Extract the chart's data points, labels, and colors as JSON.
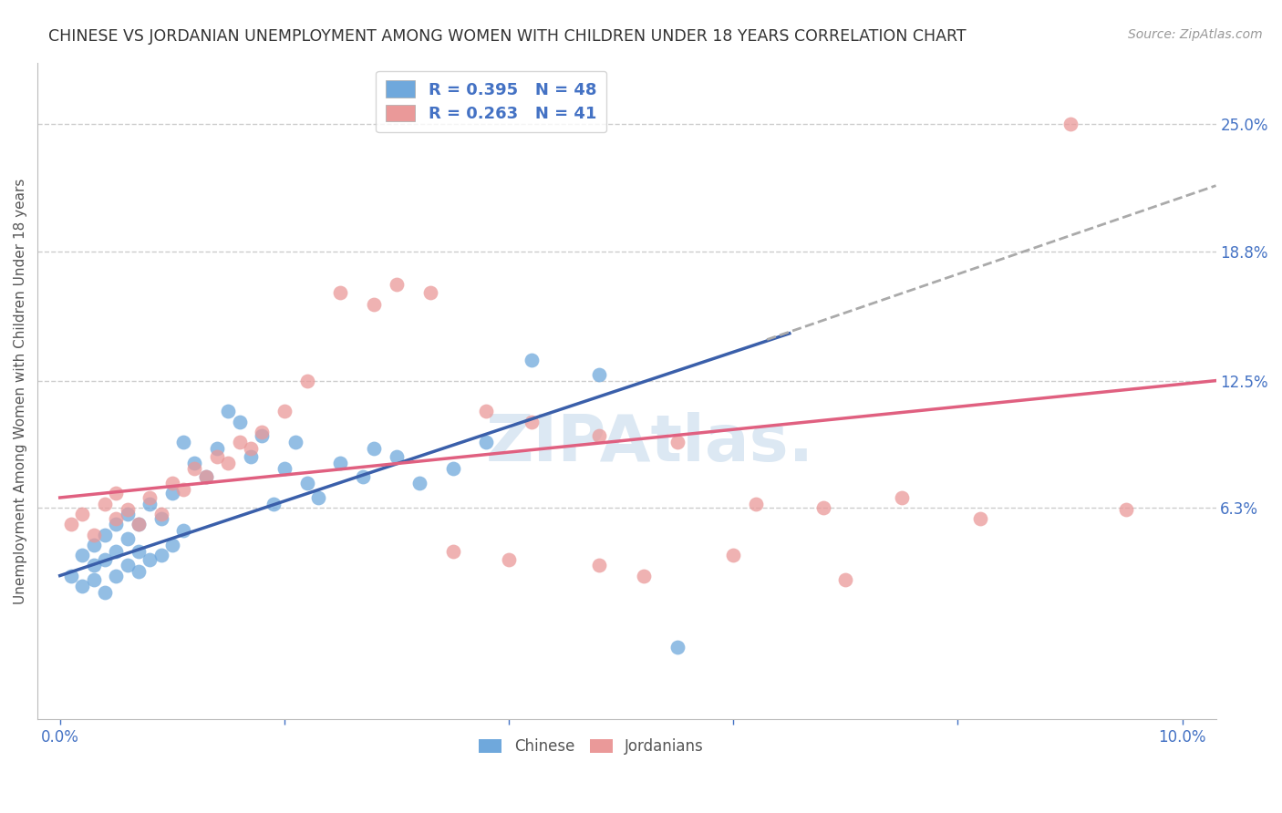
{
  "title": "CHINESE VS JORDANIAN UNEMPLOYMENT AMONG WOMEN WITH CHILDREN UNDER 18 YEARS CORRELATION CHART",
  "source": "Source: ZipAtlas.com",
  "ylabel": "Unemployment Among Women with Children Under 18 years",
  "xlim": [
    -0.002,
    0.103
  ],
  "ylim": [
    -0.04,
    0.28
  ],
  "ytick_right_vals": [
    0.063,
    0.125,
    0.188,
    0.25
  ],
  "ytick_right_labels": [
    "6.3%",
    "12.5%",
    "18.8%",
    "25.0%"
  ],
  "legend_r_chinese": "R = 0.395",
  "legend_n_chinese": "N = 48",
  "legend_r_jordanian": "R = 0.263",
  "legend_n_jordanian": "N = 41",
  "chinese_color": "#6fa8dc",
  "jordanian_color": "#ea9999",
  "chinese_line_color": "#3a5faa",
  "jordanian_line_color": "#e06080",
  "dashed_line_color": "#aaaaaa",
  "grid_color": "#cccccc",
  "title_color": "#333333",
  "tick_color": "#4472c4",
  "watermark_color": "#dce8f3",
  "background_color": "#ffffff",
  "title_fontsize": 12.5,
  "label_fontsize": 11,
  "chinese_x": [
    0.001,
    0.002,
    0.002,
    0.003,
    0.003,
    0.003,
    0.004,
    0.004,
    0.004,
    0.005,
    0.005,
    0.005,
    0.006,
    0.006,
    0.006,
    0.007,
    0.007,
    0.007,
    0.008,
    0.008,
    0.009,
    0.009,
    0.01,
    0.01,
    0.011,
    0.011,
    0.012,
    0.013,
    0.014,
    0.015,
    0.016,
    0.017,
    0.018,
    0.019,
    0.02,
    0.021,
    0.022,
    0.023,
    0.025,
    0.027,
    0.028,
    0.03,
    0.032,
    0.035,
    0.038,
    0.042,
    0.048,
    0.055
  ],
  "chinese_y": [
    0.03,
    0.025,
    0.04,
    0.028,
    0.035,
    0.045,
    0.022,
    0.038,
    0.05,
    0.03,
    0.042,
    0.055,
    0.035,
    0.048,
    0.06,
    0.032,
    0.042,
    0.055,
    0.038,
    0.065,
    0.04,
    0.058,
    0.045,
    0.07,
    0.052,
    0.095,
    0.085,
    0.078,
    0.092,
    0.11,
    0.105,
    0.088,
    0.098,
    0.065,
    0.082,
    0.095,
    0.075,
    0.068,
    0.085,
    0.078,
    0.092,
    0.088,
    0.075,
    0.082,
    0.095,
    0.135,
    0.128,
    -0.005
  ],
  "jordanian_x": [
    0.001,
    0.002,
    0.003,
    0.004,
    0.005,
    0.005,
    0.006,
    0.007,
    0.008,
    0.009,
    0.01,
    0.011,
    0.012,
    0.013,
    0.014,
    0.015,
    0.016,
    0.017,
    0.018,
    0.02,
    0.022,
    0.025,
    0.028,
    0.03,
    0.033,
    0.038,
    0.042,
    0.048,
    0.055,
    0.062,
    0.068,
    0.075,
    0.082,
    0.09,
    0.095,
    0.048,
    0.035,
    0.04,
    0.052,
    0.06,
    0.07
  ],
  "jordanian_y": [
    0.055,
    0.06,
    0.05,
    0.065,
    0.058,
    0.07,
    0.062,
    0.055,
    0.068,
    0.06,
    0.075,
    0.072,
    0.082,
    0.078,
    0.088,
    0.085,
    0.095,
    0.092,
    0.1,
    0.11,
    0.125,
    0.168,
    0.162,
    0.172,
    0.168,
    0.11,
    0.105,
    0.098,
    0.095,
    0.065,
    0.063,
    0.068,
    0.058,
    0.25,
    0.062,
    0.035,
    0.042,
    0.038,
    0.03,
    0.04,
    0.028
  ],
  "blue_line_x": [
    0.0,
    0.065
  ],
  "blue_line_y": [
    0.03,
    0.148
  ],
  "dashed_line_x": [
    0.063,
    0.103
  ],
  "dashed_line_y": [
    0.145,
    0.22
  ],
  "pink_line_x": [
    0.0,
    0.103
  ],
  "pink_line_y": [
    0.068,
    0.125
  ]
}
